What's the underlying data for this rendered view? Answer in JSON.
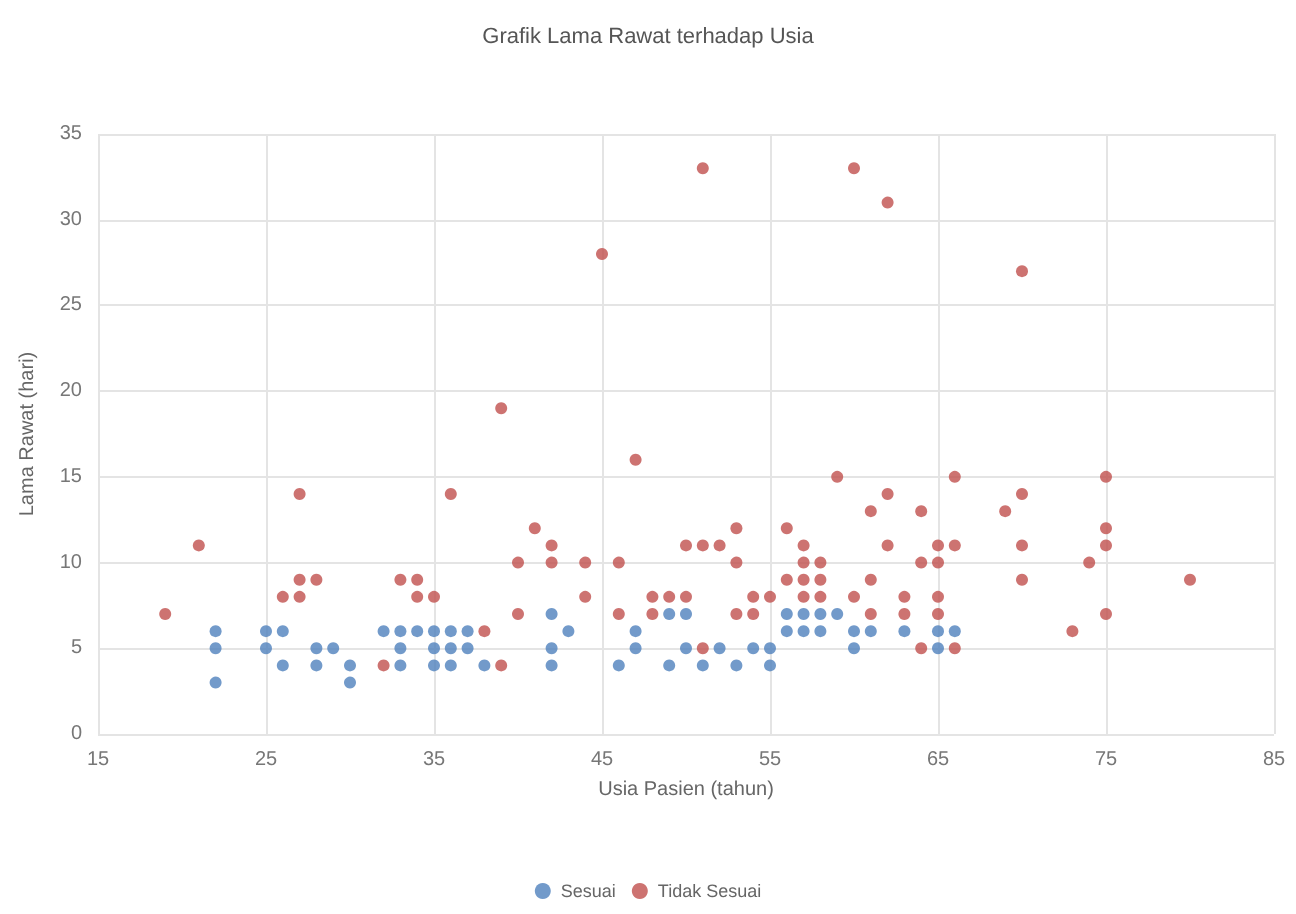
{
  "chart_data": {
    "type": "scatter",
    "title": "Grafik Lama Rawat terhadap Usia",
    "xlabel": "Usia Pasien (tahun)",
    "ylabel": "Lama Rawat (hari)",
    "xlim": [
      15,
      85
    ],
    "xticks": [
      15,
      25,
      35,
      45,
      55,
      65,
      75,
      85
    ],
    "ylim": [
      0,
      35
    ],
    "yticks": [
      0,
      5,
      10,
      15,
      20,
      25,
      30,
      35
    ],
    "grid": true,
    "legend": "bottom",
    "marker": "circle",
    "series": [
      {
        "name": "Sesuai",
        "color": "#4f81bd",
        "x": [
          22,
          22,
          22,
          25,
          25,
          26,
          26,
          28,
          28,
          29,
          30,
          30,
          32,
          33,
          34,
          33,
          33,
          35,
          36,
          37,
          35,
          36,
          37,
          35,
          36,
          38,
          42,
          42,
          42,
          43,
          46,
          47,
          47,
          49,
          50,
          56,
          57,
          58,
          59,
          56,
          57,
          58,
          60,
          61,
          63,
          65,
          66,
          50,
          52,
          54,
          55,
          60,
          65,
          49,
          51,
          53,
          55
        ],
        "values": [
          6,
          5,
          3,
          6,
          5,
          6,
          4,
          5,
          4,
          5,
          4,
          3,
          6,
          6,
          6,
          5,
          4,
          6,
          6,
          6,
          5,
          5,
          5,
          4,
          4,
          4,
          7,
          5,
          4,
          6,
          4,
          6,
          5,
          7,
          7,
          7,
          7,
          7,
          7,
          6,
          6,
          6,
          6,
          6,
          6,
          6,
          6,
          5,
          5,
          5,
          5,
          5,
          5,
          4,
          4,
          4,
          4
        ]
      },
      {
        "name": "Tidak Sesuai",
        "color": "#c0504d",
        "x": [
          19,
          21,
          26,
          27,
          27,
          28,
          27,
          32,
          33,
          34,
          34,
          35,
          36,
          38,
          39,
          39,
          40,
          40,
          41,
          42,
          42,
          44,
          44,
          45,
          46,
          46,
          47,
          51,
          60,
          62,
          70,
          59,
          66,
          75,
          62,
          70,
          61,
          64,
          69,
          53,
          56,
          75,
          50,
          51,
          52,
          57,
          62,
          65,
          66,
          70,
          75,
          53,
          57,
          58,
          64,
          65,
          74,
          70,
          80,
          56,
          57,
          58,
          61,
          48,
          49,
          50,
          54,
          55,
          57,
          58,
          60,
          63,
          65,
          48,
          53,
          54,
          61,
          63,
          65,
          75,
          73,
          51,
          64,
          66
        ],
        "values": [
          7,
          11,
          8,
          8,
          9,
          9,
          14,
          4,
          9,
          9,
          8,
          8,
          14,
          6,
          4,
          19,
          10,
          7,
          12,
          11,
          10,
          10,
          8,
          28,
          10,
          7,
          16,
          33,
          33,
          31,
          27,
          15,
          15,
          15,
          14,
          14,
          13,
          13,
          13,
          12,
          12,
          12,
          11,
          11,
          11,
          11,
          11,
          11,
          11,
          11,
          11,
          10,
          10,
          10,
          10,
          10,
          10,
          9,
          9,
          9,
          9,
          9,
          9,
          8,
          8,
          8,
          8,
          8,
          8,
          8,
          8,
          8,
          8,
          7,
          7,
          7,
          7,
          7,
          7,
          7,
          6,
          5,
          5,
          5
        ]
      }
    ]
  }
}
